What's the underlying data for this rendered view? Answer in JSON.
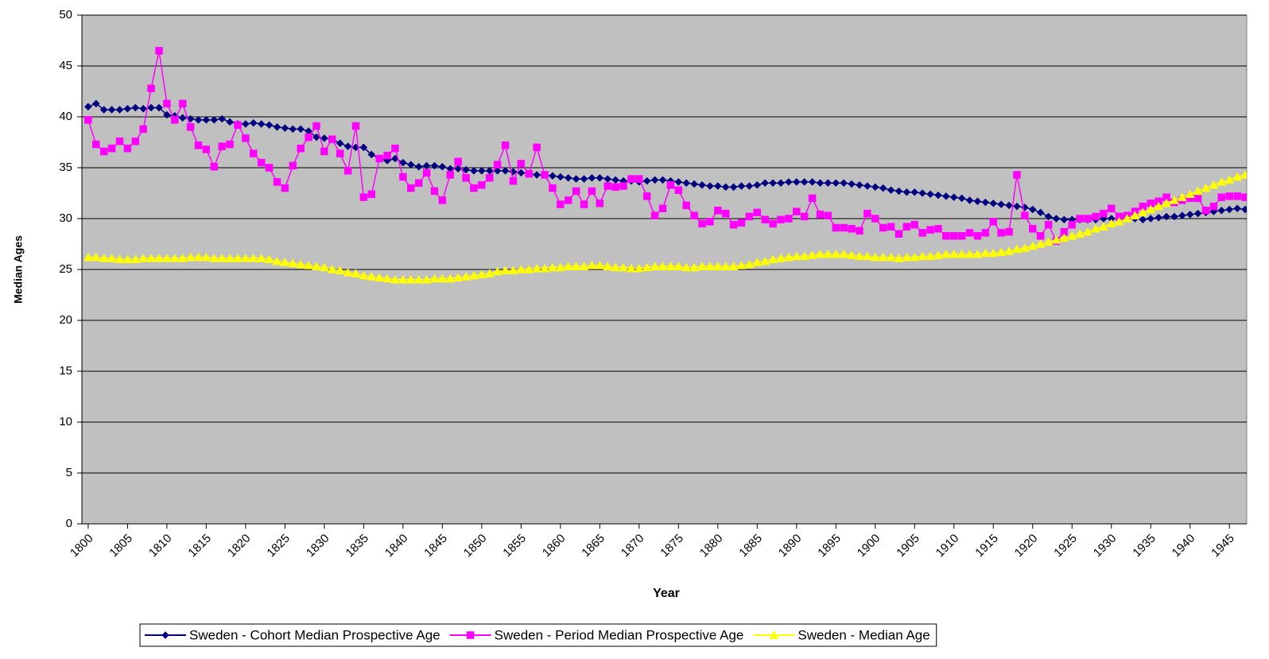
{
  "chart_data": {
    "type": "line",
    "x_label": "Year",
    "y_label": "Median Ages",
    "x": [
      1800,
      1801,
      1802,
      1803,
      1804,
      1805,
      1806,
      1807,
      1808,
      1809,
      1810,
      1811,
      1812,
      1813,
      1814,
      1815,
      1816,
      1817,
      1818,
      1819,
      1820,
      1821,
      1822,
      1823,
      1824,
      1825,
      1826,
      1827,
      1828,
      1829,
      1830,
      1831,
      1832,
      1833,
      1834,
      1835,
      1836,
      1837,
      1838,
      1839,
      1840,
      1841,
      1842,
      1843,
      1844,
      1845,
      1846,
      1847,
      1848,
      1849,
      1850,
      1851,
      1852,
      1853,
      1854,
      1855,
      1856,
      1857,
      1858,
      1859,
      1860,
      1861,
      1862,
      1863,
      1864,
      1865,
      1866,
      1867,
      1868,
      1869,
      1870,
      1871,
      1872,
      1873,
      1874,
      1875,
      1876,
      1877,
      1878,
      1879,
      1880,
      1881,
      1882,
      1883,
      1884,
      1885,
      1886,
      1887,
      1888,
      1889,
      1890,
      1891,
      1892,
      1893,
      1894,
      1895,
      1896,
      1897,
      1898,
      1899,
      1900,
      1901,
      1902,
      1903,
      1904,
      1905,
      1906,
      1907,
      1908,
      1909,
      1910,
      1911,
      1912,
      1913,
      1914,
      1915,
      1916,
      1917,
      1918,
      1919,
      1920,
      1921,
      1922,
      1923,
      1924,
      1925,
      1926,
      1927,
      1928,
      1929,
      1930,
      1931,
      1932,
      1933,
      1934,
      1935,
      1936,
      1937,
      1938,
      1939,
      1940,
      1941,
      1942,
      1943,
      1944,
      1945,
      1946,
      1947
    ],
    "series": [
      {
        "name": "Sweden - Cohort Median Prospective Age",
        "color": "#000080",
        "marker": "diamond",
        "values": [
          41.0,
          41.3,
          40.7,
          40.7,
          40.7,
          40.8,
          40.9,
          40.8,
          40.9,
          40.9,
          40.2,
          40.1,
          39.9,
          39.8,
          39.7,
          39.7,
          39.7,
          39.8,
          39.5,
          39.3,
          39.3,
          39.4,
          39.3,
          39.2,
          39.0,
          38.9,
          38.8,
          38.8,
          38.6,
          38.0,
          37.9,
          37.8,
          37.4,
          37.1,
          37.0,
          37.0,
          36.3,
          35.9,
          35.7,
          35.9,
          35.5,
          35.3,
          35.1,
          35.2,
          35.2,
          35.1,
          34.9,
          34.9,
          34.8,
          34.7,
          34.7,
          34.7,
          34.7,
          34.7,
          34.6,
          34.5,
          34.4,
          34.3,
          34.3,
          34.2,
          34.1,
          34.0,
          33.9,
          33.9,
          34.0,
          34.0,
          33.9,
          33.8,
          33.7,
          33.7,
          33.6,
          33.7,
          33.8,
          33.8,
          33.7,
          33.6,
          33.5,
          33.4,
          33.3,
          33.2,
          33.2,
          33.1,
          33.1,
          33.2,
          33.2,
          33.3,
          33.5,
          33.5,
          33.5,
          33.6,
          33.6,
          33.6,
          33.6,
          33.5,
          33.5,
          33.5,
          33.5,
          33.4,
          33.3,
          33.2,
          33.1,
          33.0,
          32.8,
          32.7,
          32.6,
          32.6,
          32.5,
          32.4,
          32.3,
          32.2,
          32.1,
          32.0,
          31.8,
          31.7,
          31.6,
          31.5,
          31.4,
          31.3,
          31.2,
          31.1,
          30.9,
          30.6,
          30.2,
          30.0,
          29.9,
          29.9,
          29.9,
          29.9,
          29.9,
          30.0,
          30.0,
          30.0,
          30.0,
          30.0,
          29.9,
          30.0,
          30.1,
          30.2,
          30.2,
          30.3,
          30.4,
          30.5,
          30.6,
          30.7,
          30.8,
          30.9,
          31.0,
          30.9
        ]
      },
      {
        "name": "Sweden - Period Median Prospective Age",
        "color": "#ff00ff",
        "marker": "square",
        "values": [
          39.7,
          37.3,
          36.6,
          36.9,
          37.6,
          36.9,
          37.6,
          38.8,
          42.8,
          46.5,
          41.3,
          39.7,
          41.3,
          39.0,
          37.2,
          36.8,
          35.1,
          37.1,
          37.3,
          39.2,
          37.9,
          36.4,
          35.5,
          35.0,
          33.6,
          33.0,
          35.2,
          36.9,
          38.0,
          39.1,
          36.6,
          37.8,
          36.4,
          34.7,
          39.1,
          32.1,
          32.4,
          35.9,
          36.2,
          36.9,
          34.1,
          33.0,
          33.5,
          34.5,
          32.7,
          31.8,
          34.3,
          35.6,
          34.0,
          33.0,
          33.3,
          34.0,
          35.3,
          37.2,
          33.7,
          35.4,
          34.4,
          37.0,
          34.3,
          33.0,
          31.4,
          31.8,
          32.7,
          31.4,
          32.7,
          31.5,
          33.2,
          33.1,
          33.2,
          33.9,
          33.9,
          32.2,
          30.3,
          31.0,
          33.3,
          32.8,
          31.3,
          30.3,
          29.5,
          29.7,
          30.8,
          30.5,
          29.4,
          29.6,
          30.2,
          30.6,
          29.9,
          29.5,
          29.9,
          30.0,
          30.7,
          30.2,
          32.0,
          30.4,
          30.3,
          29.1,
          29.1,
          29.0,
          28.8,
          30.5,
          30.0,
          29.1,
          29.2,
          28.5,
          29.2,
          29.4,
          28.6,
          28.9,
          29.0,
          28.3,
          28.3,
          28.3,
          28.6,
          28.3,
          28.6,
          29.7,
          28.6,
          28.7,
          34.3,
          30.3,
          29.0,
          28.3,
          29.4,
          27.8,
          28.7,
          29.4,
          30.0,
          30.0,
          30.2,
          30.5,
          31.0,
          30.2,
          30.3,
          30.7,
          31.2,
          31.5,
          31.7,
          32.1,
          31.6,
          31.8,
          32.0,
          32.0,
          30.8,
          31.2,
          32.1,
          32.2,
          32.2,
          32.1
        ]
      },
      {
        "name": "Sweden - Median Age",
        "color": "#ffff00",
        "marker": "triangle",
        "values": [
          26.2,
          26.2,
          26.1,
          26.1,
          26.0,
          26.0,
          26.0,
          26.1,
          26.1,
          26.1,
          26.1,
          26.1,
          26.1,
          26.2,
          26.2,
          26.2,
          26.1,
          26.1,
          26.1,
          26.1,
          26.1,
          26.1,
          26.1,
          26.0,
          25.8,
          25.7,
          25.6,
          25.5,
          25.4,
          25.3,
          25.2,
          25.0,
          24.9,
          24.7,
          24.6,
          24.4,
          24.3,
          24.2,
          24.1,
          24.0,
          24.0,
          24.0,
          24.0,
          24.0,
          24.1,
          24.1,
          24.1,
          24.2,
          24.3,
          24.4,
          24.5,
          24.6,
          24.8,
          24.9,
          24.9,
          25.0,
          25.0,
          25.1,
          25.1,
          25.2,
          25.2,
          25.3,
          25.3,
          25.3,
          25.4,
          25.4,
          25.3,
          25.2,
          25.2,
          25.1,
          25.1,
          25.2,
          25.3,
          25.3,
          25.3,
          25.3,
          25.2,
          25.2,
          25.3,
          25.3,
          25.3,
          25.3,
          25.3,
          25.4,
          25.5,
          25.7,
          25.8,
          26.0,
          26.1,
          26.2,
          26.3,
          26.3,
          26.4,
          26.5,
          26.5,
          26.5,
          26.5,
          26.4,
          26.3,
          26.3,
          26.2,
          26.2,
          26.2,
          26.1,
          26.2,
          26.2,
          26.3,
          26.3,
          26.4,
          26.5,
          26.5,
          26.5,
          26.5,
          26.5,
          26.6,
          26.6,
          26.7,
          26.8,
          27.0,
          27.1,
          27.3,
          27.5,
          27.7,
          27.9,
          28.1,
          28.3,
          28.5,
          28.7,
          29.0,
          29.2,
          29.5,
          29.7,
          30.0,
          30.3,
          30.6,
          30.9,
          31.2,
          31.5,
          31.8,
          32.1,
          32.4,
          32.7,
          33.0,
          33.3,
          33.6,
          33.8,
          34.1,
          34.3
        ]
      }
    ],
    "xlim": [
      1799.2,
      1947.2
    ],
    "xticks": [
      1800,
      1805,
      1810,
      1815,
      1820,
      1825,
      1830,
      1835,
      1840,
      1845,
      1850,
      1855,
      1860,
      1865,
      1870,
      1875,
      1880,
      1885,
      1890,
      1895,
      1900,
      1905,
      1910,
      1915,
      1920,
      1925,
      1930,
      1935,
      1940,
      1945
    ],
    "ylim": [
      0,
      50
    ],
    "yticks": [
      0,
      5,
      10,
      15,
      20,
      25,
      30,
      35,
      40,
      45,
      50
    ],
    "grid": true,
    "background": "#c0c0c0",
    "legend": "bottom"
  }
}
